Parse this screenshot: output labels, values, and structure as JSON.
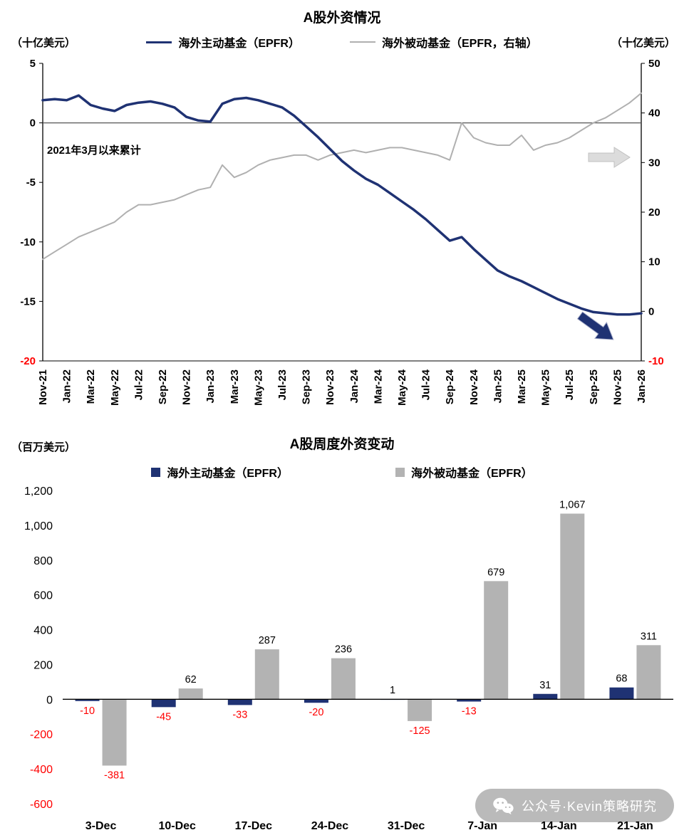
{
  "colors": {
    "active_navy": "#1f3273",
    "passive_gray": "#b0b0b0",
    "bar_gray": "#b3b3b3",
    "negative_red": "#ff0000"
  },
  "watermark": {
    "text": "公众号·Kevin策略研究",
    "icon": "wechat-icon"
  },
  "chart_data": [
    {
      "type": "line",
      "title": "A股外资情况",
      "annotation": "2021年3月以来累计",
      "left_axis": {
        "unit": "（十亿美元）",
        "max": 5,
        "min": -20,
        "ticks": [
          5,
          0,
          -5,
          -10,
          -15,
          -20
        ]
      },
      "right_axis": {
        "unit": "（十亿美元）",
        "max": 50,
        "min": -10,
        "ticks": [
          50,
          40,
          30,
          20,
          10,
          0,
          -10
        ]
      },
      "x_tick_labels": [
        "Nov-21",
        "Jan-22",
        "Mar-22",
        "May-22",
        "Jul-22",
        "Sep-22",
        "Nov-22",
        "Jan-23",
        "Mar-23",
        "May-23",
        "Jul-23",
        "Sep-23",
        "Nov-23",
        "Jan-24",
        "Mar-24",
        "May-24",
        "Jul-24",
        "Sep-24",
        "Nov-24",
        "Jan-25",
        "Mar-25",
        "May-25",
        "Jul-25",
        "Sep-25",
        "Nov-25",
        "Jan-26"
      ],
      "series": [
        {
          "name": "海外主动基金（EPFR）",
          "axis": "left",
          "color": "#1f3273",
          "width": 3.5,
          "values": [
            1.9,
            2.0,
            1.9,
            2.3,
            1.5,
            1.2,
            1.0,
            1.5,
            1.7,
            1.8,
            1.6,
            1.3,
            0.5,
            0.2,
            0.1,
            1.6,
            2.0,
            2.1,
            1.9,
            1.6,
            1.3,
            0.6,
            -0.3,
            -1.2,
            -2.2,
            -3.2,
            -4.0,
            -4.7,
            -5.2,
            -5.9,
            -6.6,
            -7.3,
            -8.1,
            -9.0,
            -9.9,
            -9.6,
            -10.6,
            -11.5,
            -12.4,
            -12.9,
            -13.3,
            -13.8,
            -14.3,
            -14.8,
            -15.2,
            -15.6,
            -15.9,
            -16.0,
            -16.1,
            -16.1,
            -16.0
          ]
        },
        {
          "name": "海外被动基金（EPFR，右轴）",
          "axis": "right",
          "color": "#b0b0b0",
          "width": 2,
          "values": [
            10.5,
            12,
            13.5,
            15,
            16,
            17,
            18,
            20,
            21.5,
            21.5,
            22,
            22.5,
            23.5,
            24.5,
            25,
            29.5,
            27,
            28,
            29.5,
            30.5,
            31,
            31.5,
            31.5,
            30.5,
            31.5,
            32,
            32.5,
            32,
            32.5,
            33,
            33,
            32.5,
            32,
            31.5,
            30.5,
            38,
            35,
            34,
            33.5,
            33.5,
            35.5,
            32.5,
            33.5,
            34,
            35,
            36.5,
            38,
            39,
            40.5,
            42,
            44
          ]
        }
      ]
    },
    {
      "type": "bar",
      "title": "A股周度外资变动",
      "unit": "（百万美元）",
      "categories": [
        "3-Dec",
        "10-Dec",
        "17-Dec",
        "24-Dec",
        "31-Dec",
        "7-Jan",
        "14-Jan",
        "21-Jan"
      ],
      "ylim": [
        -600,
        1200
      ],
      "yticks": [
        1200,
        1000,
        800,
        600,
        400,
        200,
        0,
        -200,
        -400,
        -600
      ],
      "series": [
        {
          "name": "海外主动基金（EPFR）",
          "color": "#1f3273",
          "values": [
            -10,
            -45,
            -33,
            -20,
            1,
            -13,
            31,
            68
          ]
        },
        {
          "name": "海外被动基金（EPFR）",
          "color": "#b3b3b3",
          "values": [
            -381,
            62,
            287,
            236,
            -125,
            679,
            1067,
            311
          ]
        }
      ]
    }
  ]
}
